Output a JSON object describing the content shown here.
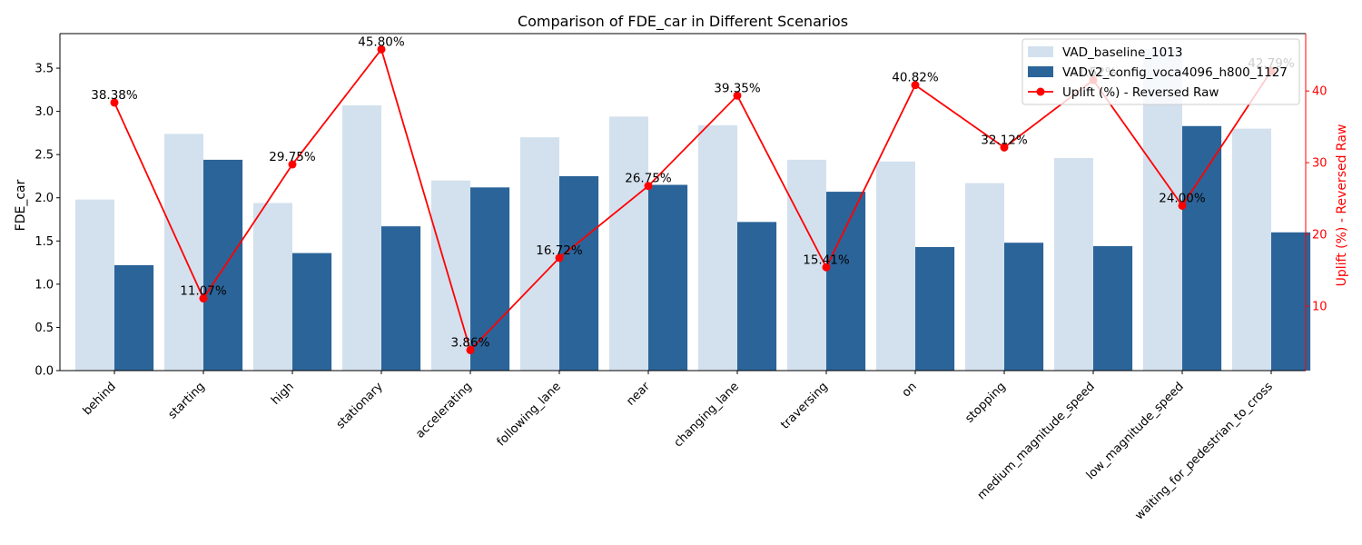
{
  "chart_data": {
    "type": "bar",
    "title": "Comparison of FDE_car in Different Scenarios",
    "ylabel": "FDE_car",
    "y2label": "Uplift (%) - Reversed Raw",
    "ylim": [
      0,
      3.9
    ],
    "y2lim": [
      1.0,
      48.0
    ],
    "yticks": [
      "0.0",
      "0.5",
      "1.0",
      "1.5",
      "2.0",
      "2.5",
      "3.0",
      "3.5"
    ],
    "y2ticks": [
      "10",
      "20",
      "30",
      "40"
    ],
    "categories": [
      "behind",
      "starting",
      "high",
      "stationary",
      "accelerating",
      "following_lane",
      "near",
      "changing_lane",
      "traversing",
      "on",
      "stopping",
      "medium_magnitude_speed",
      "low_magnitude_speed",
      "waiting_for_pedestrian_to_cross"
    ],
    "series": [
      {
        "name": "VAD_baseline_1013",
        "values": [
          1.98,
          2.74,
          1.94,
          3.07,
          2.2,
          2.7,
          2.94,
          2.84,
          2.44,
          2.42,
          2.17,
          2.46,
          3.72,
          2.8
        ],
        "color": "#d3e1ee"
      },
      {
        "name": "VADv2_config_voca4096_h800_1127",
        "values": [
          1.22,
          2.44,
          1.36,
          1.67,
          2.12,
          2.25,
          2.15,
          1.72,
          2.07,
          1.43,
          1.48,
          1.44,
          2.83,
          1.6
        ],
        "color": "#2b6499"
      },
      {
        "name": "Uplift (%) - Reversed Raw",
        "type": "line",
        "axis": "right",
        "values": [
          38.38,
          11.07,
          29.75,
          45.8,
          3.86,
          16.72,
          26.75,
          39.35,
          15.41,
          40.82,
          32.12,
          41.52,
          24.0,
          42.79
        ],
        "labels": [
          "38.38%",
          "11.07%",
          "29.75%",
          "45.80%",
          "3.86%",
          "16.72%",
          "26.75%",
          "39.35%",
          "15.41%",
          "40.82%",
          "32.12%",
          "41.52%",
          "24.00%",
          "42.79%"
        ],
        "color": "#ff0000"
      }
    ],
    "legend_position": "top-right",
    "grid": false
  }
}
